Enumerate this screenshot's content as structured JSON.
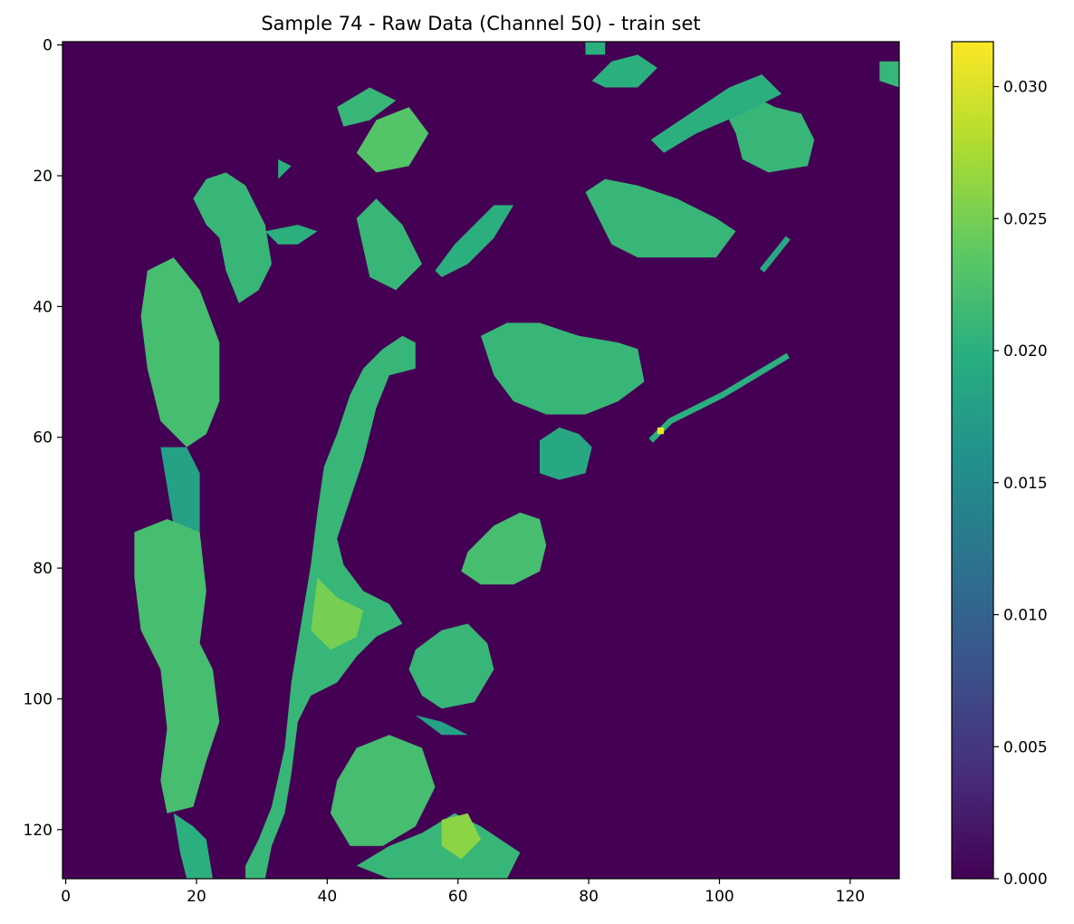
{
  "chart_data": {
    "type": "heatmap",
    "title": "Sample 74 - Raw Data (Channel 50) - train set",
    "xlabel": "",
    "ylabel": "",
    "grid": false,
    "xlim": [
      -0.5,
      127.5
    ],
    "ylim": [
      127.5,
      -0.5
    ],
    "grid_size": [
      128,
      128
    ],
    "x_ticks": [
      0,
      20,
      40,
      60,
      80,
      100,
      120
    ],
    "y_ticks": [
      0,
      20,
      40,
      60,
      80,
      100,
      120
    ],
    "x_tick_labels": [
      "0",
      "20",
      "40",
      "60",
      "80",
      "100",
      "120"
    ],
    "y_tick_labels": [
      "0",
      "20",
      "40",
      "60",
      "80",
      "100",
      "120"
    ],
    "colormap": "viridis",
    "colorbar": {
      "vmin": 0.0,
      "vmax": 0.0317,
      "ticks": [
        0.0,
        0.005,
        0.01,
        0.015,
        0.02,
        0.025,
        0.03
      ],
      "tick_labels": [
        "0.000",
        "0.005",
        "0.010",
        "0.015",
        "0.020",
        "0.025",
        "0.030"
      ]
    },
    "background_value": 0.0,
    "peak": {
      "x": 91,
      "y": 59,
      "value": 0.031
    },
    "regions": [
      {
        "points": [
          [
            20,
            24
          ],
          [
            22,
            28
          ],
          [
            24,
            30
          ],
          [
            25,
            35
          ],
          [
            27,
            40
          ],
          [
            30,
            38
          ],
          [
            32,
            34
          ],
          [
            31,
            28
          ],
          [
            28,
            22
          ],
          [
            25,
            20
          ],
          [
            22,
            21
          ]
        ],
        "value": 0.021
      },
      {
        "points": [
          [
            13,
            35
          ],
          [
            17,
            33
          ],
          [
            21,
            38
          ],
          [
            24,
            46
          ],
          [
            24,
            55
          ],
          [
            22,
            60
          ],
          [
            19,
            62
          ],
          [
            15,
            58
          ],
          [
            13,
            50
          ],
          [
            12,
            42
          ]
        ],
        "value": 0.022
      },
      {
        "points": [
          [
            15,
            62
          ],
          [
            19,
            62
          ],
          [
            21,
            66
          ],
          [
            21,
            75
          ],
          [
            17,
            74
          ],
          [
            16,
            68
          ]
        ],
        "value": 0.018
      },
      {
        "points": [
          [
            11,
            75
          ],
          [
            16,
            73
          ],
          [
            21,
            75
          ],
          [
            22,
            84
          ],
          [
            21,
            92
          ],
          [
            23,
            96
          ],
          [
            24,
            104
          ],
          [
            22,
            110
          ],
          [
            20,
            117
          ],
          [
            16,
            118
          ],
          [
            15,
            113
          ],
          [
            16,
            105
          ],
          [
            15,
            96
          ],
          [
            12,
            90
          ],
          [
            11,
            82
          ]
        ],
        "value": 0.022
      },
      {
        "points": [
          [
            17,
            118
          ],
          [
            20,
            120
          ],
          [
            22,
            122
          ],
          [
            23,
            128
          ],
          [
            19,
            128
          ],
          [
            18,
            124
          ]
        ],
        "value": 0.02
      },
      {
        "points": [
          [
            28,
            126
          ],
          [
            30,
            122
          ],
          [
            32,
            117
          ],
          [
            34,
            108
          ],
          [
            35,
            98
          ],
          [
            36,
            92
          ],
          [
            37,
            86
          ],
          [
            38,
            80
          ],
          [
            39,
            72
          ],
          [
            40,
            65
          ],
          [
            42,
            60
          ],
          [
            44,
            54
          ],
          [
            46,
            50
          ],
          [
            49,
            47
          ],
          [
            52,
            45
          ],
          [
            54,
            46
          ],
          [
            54,
            50
          ],
          [
            50,
            51
          ],
          [
            48,
            56
          ],
          [
            46,
            64
          ],
          [
            44,
            70
          ],
          [
            42,
            76
          ],
          [
            43,
            80
          ],
          [
            46,
            84
          ],
          [
            50,
            86
          ],
          [
            52,
            89
          ],
          [
            48,
            91
          ],
          [
            45,
            94
          ],
          [
            42,
            98
          ],
          [
            38,
            100
          ],
          [
            36,
            104
          ],
          [
            35,
            112
          ],
          [
            34,
            118
          ],
          [
            32,
            123
          ],
          [
            31,
            128
          ],
          [
            28,
            128
          ]
        ],
        "value": 0.021
      },
      {
        "points": [
          [
            39,
            82
          ],
          [
            42,
            85
          ],
          [
            46,
            87
          ],
          [
            45,
            91
          ],
          [
            41,
            93
          ],
          [
            38,
            90
          ]
        ],
        "value": 0.025
      },
      {
        "points": [
          [
            45,
            27
          ],
          [
            48,
            24
          ],
          [
            52,
            28
          ],
          [
            55,
            34
          ],
          [
            51,
            38
          ],
          [
            47,
            36
          ]
        ],
        "value": 0.021
      },
      {
        "points": [
          [
            48,
            12
          ],
          [
            53,
            10
          ],
          [
            56,
            14
          ],
          [
            53,
            19
          ],
          [
            48,
            20
          ],
          [
            45,
            17
          ]
        ],
        "value": 0.023
      },
      {
        "points": [
          [
            42,
            10
          ],
          [
            47,
            7
          ],
          [
            51,
            9
          ],
          [
            47,
            12
          ],
          [
            43,
            13
          ]
        ],
        "value": 0.021
      },
      {
        "points": [
          [
            57,
            35
          ],
          [
            60,
            31
          ],
          [
            63,
            28
          ],
          [
            66,
            25
          ],
          [
            69,
            25
          ],
          [
            66,
            30
          ],
          [
            62,
            34
          ],
          [
            58,
            36
          ]
        ],
        "value": 0.02
      },
      {
        "points": [
          [
            80,
            23
          ],
          [
            83,
            21
          ],
          [
            88,
            22
          ],
          [
            94,
            24
          ],
          [
            100,
            27
          ],
          [
            103,
            29
          ],
          [
            100,
            33
          ],
          [
            95,
            33
          ],
          [
            88,
            33
          ],
          [
            84,
            31
          ],
          [
            82,
            27
          ]
        ],
        "value": 0.021
      },
      {
        "points": [
          [
            101,
            10
          ],
          [
            105,
            8
          ],
          [
            109,
            10
          ],
          [
            113,
            11
          ],
          [
            115,
            15
          ],
          [
            114,
            19
          ],
          [
            108,
            20
          ],
          [
            104,
            18
          ],
          [
            103,
            14
          ]
        ],
        "value": 0.021
      },
      {
        "points": [
          [
            90,
            15
          ],
          [
            96,
            11
          ],
          [
            102,
            7
          ],
          [
            107,
            5
          ],
          [
            110,
            8
          ],
          [
            104,
            11
          ],
          [
            97,
            14
          ],
          [
            92,
            17
          ]
        ],
        "value": 0.02
      },
      {
        "points": [
          [
            81,
            6
          ],
          [
            84,
            3
          ],
          [
            88,
            2
          ],
          [
            91,
            4
          ],
          [
            88,
            7
          ],
          [
            83,
            7
          ]
        ],
        "value": 0.02
      },
      {
        "points": [
          [
            64,
            45
          ],
          [
            68,
            43
          ],
          [
            73,
            43
          ],
          [
            79,
            45
          ],
          [
            85,
            46
          ],
          [
            88,
            47
          ],
          [
            89,
            52
          ],
          [
            85,
            55
          ],
          [
            80,
            57
          ],
          [
            74,
            57
          ],
          [
            69,
            55
          ],
          [
            66,
            51
          ]
        ],
        "value": 0.021
      },
      {
        "points": [
          [
            73,
            61
          ],
          [
            76,
            59
          ],
          [
            79,
            60
          ],
          [
            81,
            62
          ],
          [
            80,
            66
          ],
          [
            76,
            67
          ],
          [
            73,
            66
          ]
        ],
        "value": 0.019
      },
      {
        "points": [
          [
            62,
            78
          ],
          [
            66,
            74
          ],
          [
            70,
            72
          ],
          [
            73,
            73
          ],
          [
            74,
            77
          ],
          [
            73,
            81
          ],
          [
            69,
            83
          ],
          [
            64,
            83
          ],
          [
            61,
            81
          ]
        ],
        "value": 0.022
      },
      {
        "points": [
          [
            54,
            93
          ],
          [
            58,
            90
          ],
          [
            62,
            89
          ],
          [
            65,
            92
          ],
          [
            66,
            96
          ],
          [
            63,
            101
          ],
          [
            58,
            102
          ],
          [
            55,
            100
          ],
          [
            53,
            96
          ]
        ],
        "value": 0.021
      },
      {
        "points": [
          [
            42,
            113
          ],
          [
            45,
            108
          ],
          [
            50,
            106
          ],
          [
            55,
            108
          ],
          [
            57,
            114
          ],
          [
            54,
            120
          ],
          [
            49,
            123
          ],
          [
            44,
            123
          ],
          [
            41,
            118
          ]
        ],
        "value": 0.022
      },
      {
        "points": [
          [
            45,
            126
          ],
          [
            50,
            123
          ],
          [
            55,
            121
          ],
          [
            60,
            118
          ],
          [
            64,
            120
          ],
          [
            67,
            122
          ],
          [
            70,
            124
          ],
          [
            68,
            128
          ],
          [
            60,
            128
          ],
          [
            50,
            128
          ]
        ],
        "value": 0.021
      },
      {
        "points": [
          [
            58,
            119
          ],
          [
            62,
            118
          ],
          [
            64,
            122
          ],
          [
            61,
            125
          ],
          [
            58,
            123
          ]
        ],
        "value": 0.026
      },
      {
        "points": [
          [
            54,
            103
          ],
          [
            58,
            104
          ],
          [
            62,
            106
          ],
          [
            58,
            106
          ]
        ],
        "value": 0.018
      },
      {
        "points": [
          [
            33,
            18
          ],
          [
            35,
            19
          ],
          [
            33,
            21
          ]
        ],
        "value": 0.02
      },
      {
        "points": [
          [
            31,
            29
          ],
          [
            36,
            28
          ],
          [
            39,
            29
          ],
          [
            36,
            31
          ],
          [
            33,
            31
          ]
        ],
        "value": 0.02
      },
      {
        "points": [
          [
            125,
            3
          ],
          [
            128,
            3
          ],
          [
            128,
            7
          ],
          [
            125,
            6
          ]
        ],
        "value": 0.021
      },
      {
        "points": [
          [
            80,
            0
          ],
          [
            83,
            0
          ],
          [
            83,
            2
          ],
          [
            80,
            2
          ]
        ],
        "value": 0.02
      }
    ],
    "lines": [
      {
        "points": [
          [
            90,
            61
          ],
          [
            93,
            58
          ],
          [
            97,
            56
          ],
          [
            101,
            54
          ],
          [
            106,
            51
          ],
          [
            111,
            48
          ]
        ],
        "value": 0.02
      },
      {
        "points": [
          [
            107,
            35
          ],
          [
            111,
            30
          ]
        ],
        "value": 0.019
      }
    ]
  }
}
